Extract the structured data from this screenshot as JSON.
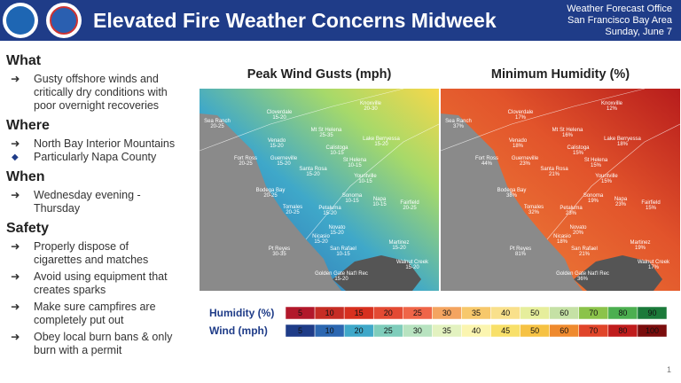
{
  "header": {
    "title": "Elevated Fire Weather Concerns Midweek",
    "office": [
      "Weather Forecast Office",
      "San Francisco Bay Area",
      "Sunday, June 7"
    ]
  },
  "sections": [
    {
      "heading": "What",
      "items": [
        {
          "text": "Gusty offshore winds and critically dry conditions with poor overnight recoveries"
        }
      ]
    },
    {
      "heading": "Where",
      "items": [
        {
          "text": "North Bay Interior Mountains",
          "subitems": [
            "Particularly Napa County"
          ]
        }
      ]
    },
    {
      "heading": "When",
      "items": [
        {
          "text": "Wednesday evening - Thursday"
        }
      ]
    },
    {
      "heading": "Safety",
      "items": [
        {
          "text": "Properly dispose of cigarettes and matches"
        },
        {
          "text": "Avoid using equipment that creates sparks"
        },
        {
          "text": "Make sure campfires are completely put out"
        },
        {
          "text": "Obey local burn bans & only burn with a permit"
        }
      ]
    }
  ],
  "maps": [
    {
      "title": "Peak Wind Gusts (mph)",
      "labels": [
        {
          "place": "Sea Ranch",
          "value": "20-25"
        },
        {
          "place": "Cloverdale",
          "value": "15-20"
        },
        {
          "place": "Knoxville",
          "value": "20-30"
        },
        {
          "place": "Mt St Helena",
          "value": "25-35"
        },
        {
          "place": "Venado",
          "value": "15-20"
        },
        {
          "place": "Calistoga",
          "value": "10-15"
        },
        {
          "place": "Lake Berryessa",
          "value": "15-20"
        },
        {
          "place": "Fort Ross",
          "value": "20-25"
        },
        {
          "place": "Guerneville",
          "value": "15-20"
        },
        {
          "place": "St Helena",
          "value": "10-15"
        },
        {
          "place": "Santa Rosa",
          "value": "15-20"
        },
        {
          "place": "Yountville",
          "value": "10-15"
        },
        {
          "place": "Bodega Bay",
          "value": "20-25"
        },
        {
          "place": "Sonoma",
          "value": "10-15"
        },
        {
          "place": "Napa",
          "value": "10-15"
        },
        {
          "place": "Fairfield",
          "value": "20-25"
        },
        {
          "place": "Tomales",
          "value": "20-25"
        },
        {
          "place": "Petaluma",
          "value": "15-20"
        },
        {
          "place": "Novato",
          "value": "15-20"
        },
        {
          "place": "Nicasio",
          "value": "15-20"
        },
        {
          "place": "Pt Reyes",
          "value": "30-35"
        },
        {
          "place": "San Rafael",
          "value": "10-15"
        },
        {
          "place": "Martinez",
          "value": "15-20"
        },
        {
          "place": "Walnut Creek",
          "value": "15-20"
        },
        {
          "place": "Golden Gate Nat'l Rec",
          "value": "15-20"
        }
      ]
    },
    {
      "title": "Minimum Humidity (%)",
      "labels": [
        {
          "place": "Sea Ranch",
          "value": "37%"
        },
        {
          "place": "Cloverdale",
          "value": "17%"
        },
        {
          "place": "Knoxville",
          "value": "12%"
        },
        {
          "place": "Mt St Helena",
          "value": "16%"
        },
        {
          "place": "Venado",
          "value": "18%"
        },
        {
          "place": "Calistoga",
          "value": "15%"
        },
        {
          "place": "Lake Berryessa",
          "value": "18%"
        },
        {
          "place": "Fort Ross",
          "value": "44%"
        },
        {
          "place": "Guerneville",
          "value": "23%"
        },
        {
          "place": "St Helena",
          "value": "15%"
        },
        {
          "place": "Santa Rosa",
          "value": "21%"
        },
        {
          "place": "Yountville",
          "value": "15%"
        },
        {
          "place": "Bodega Bay",
          "value": "38%"
        },
        {
          "place": "Sonoma",
          "value": "19%"
        },
        {
          "place": "Napa",
          "value": "23%"
        },
        {
          "place": "Fairfield",
          "value": "15%"
        },
        {
          "place": "Tomales",
          "value": "32%"
        },
        {
          "place": "Petaluma",
          "value": "23%"
        },
        {
          "place": "Novato",
          "value": "20%"
        },
        {
          "place": "Nicasio",
          "value": "18%"
        },
        {
          "place": "Pt Reyes",
          "value": "81%"
        },
        {
          "place": "San Rafael",
          "value": "21%"
        },
        {
          "place": "Martinez",
          "value": "19%"
        },
        {
          "place": "Walnut Creek",
          "value": "17%"
        },
        {
          "place": "Golden Gate Nat'l Rec",
          "value": "36%"
        }
      ]
    }
  ],
  "legend": [
    {
      "label": "Humidity (%)",
      "ticks": [
        5,
        10,
        15,
        20,
        25,
        30,
        35,
        40,
        50,
        60,
        70,
        80,
        90
      ]
    },
    {
      "label": "Wind (mph)",
      "ticks": [
        5,
        10,
        20,
        25,
        30,
        35,
        40,
        45,
        50,
        60,
        70,
        80,
        100
      ]
    }
  ],
  "page_number": 1
}
